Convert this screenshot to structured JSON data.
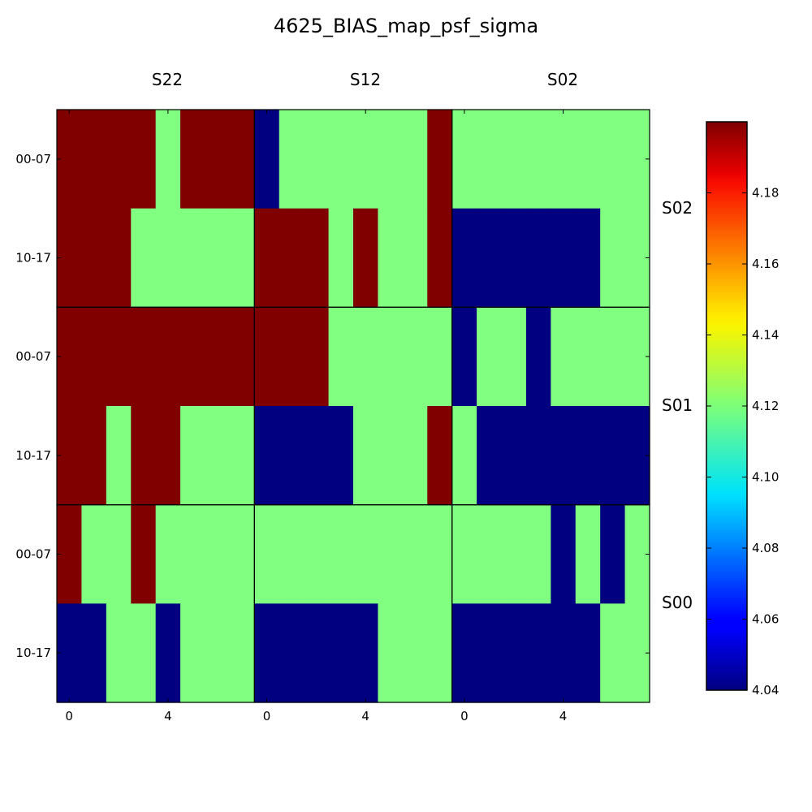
{
  "chart_data": {
    "type": "heatmap",
    "title": "4625_BIAS_map_psf_sigma",
    "column_labels": [
      "S22",
      "S12",
      "S02"
    ],
    "row_labels": [
      "S02",
      "S01",
      "S00"
    ],
    "x_tick_labels": [
      "0",
      "4"
    ],
    "x_tick_values": [
      0,
      4
    ],
    "y_tick_labels": [
      "00-07",
      "10-17"
    ],
    "colormap": "jet",
    "colorbar": {
      "min": 4.04,
      "max": 4.2,
      "tick_values": [
        4.04,
        4.06,
        4.08,
        4.1,
        4.12,
        4.14,
        4.16,
        4.18
      ],
      "tick_labels": [
        "4.04",
        "4.06",
        "4.08",
        "4.10",
        "4.12",
        "4.14",
        "4.16",
        "4.18"
      ]
    },
    "grid_rows": 6,
    "grid_cols": 24,
    "values": [
      [
        4.2,
        4.2,
        4.2,
        4.2,
        4.12,
        4.2,
        4.2,
        4.2,
        4.04,
        4.12,
        4.12,
        4.12,
        4.12,
        4.12,
        4.12,
        4.2,
        4.12,
        4.12,
        4.12,
        4.12,
        4.12,
        4.12,
        4.12,
        4.12
      ],
      [
        4.2,
        4.2,
        4.2,
        4.12,
        4.12,
        4.12,
        4.12,
        4.12,
        4.2,
        4.2,
        4.2,
        4.12,
        4.2,
        4.12,
        4.12,
        4.2,
        4.04,
        4.04,
        4.04,
        4.04,
        4.04,
        4.04,
        4.12,
        4.12
      ],
      [
        4.2,
        4.2,
        4.2,
        4.2,
        4.2,
        4.2,
        4.2,
        4.2,
        4.2,
        4.2,
        4.2,
        4.12,
        4.12,
        4.12,
        4.12,
        4.12,
        4.04,
        4.12,
        4.12,
        4.04,
        4.12,
        4.12,
        4.12,
        4.12
      ],
      [
        4.2,
        4.2,
        4.12,
        4.2,
        4.2,
        4.12,
        4.12,
        4.12,
        4.04,
        4.04,
        4.04,
        4.04,
        4.12,
        4.12,
        4.12,
        4.2,
        4.12,
        4.04,
        4.04,
        4.04,
        4.04,
        4.04,
        4.04,
        4.04
      ],
      [
        4.2,
        4.12,
        4.12,
        4.2,
        4.12,
        4.12,
        4.12,
        4.12,
        4.12,
        4.12,
        4.12,
        4.12,
        4.12,
        4.12,
        4.12,
        4.12,
        4.12,
        4.12,
        4.12,
        4.12,
        4.04,
        4.12,
        4.04,
        4.12
      ],
      [
        4.04,
        4.04,
        4.12,
        4.12,
        4.04,
        4.12,
        4.12,
        4.12,
        4.04,
        4.04,
        4.04,
        4.04,
        4.04,
        4.12,
        4.12,
        4.12,
        4.04,
        4.04,
        4.04,
        4.04,
        4.04,
        4.04,
        4.12,
        4.12
      ]
    ]
  }
}
